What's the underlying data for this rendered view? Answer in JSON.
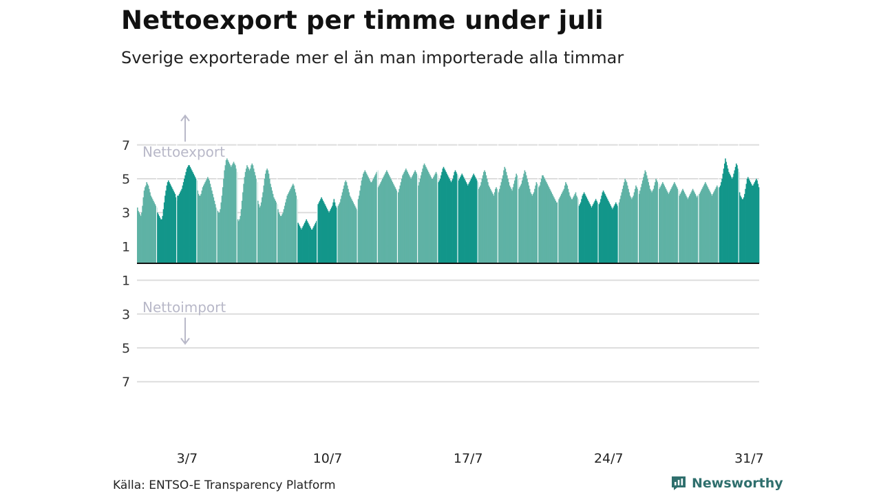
{
  "header": {
    "title": "Nettoexport per timme under juli",
    "subtitle": "Sverige exporterade mer el än man importerade alla timmar"
  },
  "footer": {
    "source": "Källa: ENTSO-E Transparency Platform",
    "brand": "Newsworthy",
    "brand_icon": "bar-chart-logo-icon",
    "brand_color": "#2f6f6d"
  },
  "chart_data": {
    "type": "bar",
    "x_tick_labels": [
      "3/7",
      "10/7",
      "17/7",
      "24/7",
      "31/7"
    ],
    "y_tick_labels": [
      "7",
      "5",
      "3",
      "1",
      "1",
      "3",
      "5",
      "7"
    ],
    "y_tick_values": [
      7,
      5,
      3,
      1,
      -1,
      -3,
      -5,
      -7
    ],
    "ylim": [
      -7,
      7
    ],
    "annotations": {
      "export": "Nettoexport",
      "import": "Nettoimport"
    },
    "colors": {
      "weekday": "#5fb2a5",
      "weekend": "#12968a",
      "annotation": "#b8b8c8",
      "grid": "#dddddd"
    },
    "grid": true,
    "weekend_days": [
      1,
      2,
      8,
      9,
      15,
      16,
      22,
      23,
      29,
      30
    ],
    "daily_values": [
      [
        3.3,
        3.1,
        3.0,
        2.9,
        2.8,
        3.0,
        3.4,
        3.9,
        4.3,
        4.5,
        4.6,
        4.8,
        4.7,
        4.6,
        4.4,
        4.2,
        4.0,
        3.9,
        3.8,
        3.7,
        3.6,
        3.5,
        3.4,
        3.3
      ],
      [
        3.0,
        2.9,
        2.8,
        2.7,
        2.6,
        2.6,
        2.8,
        3.2,
        3.6,
        4.0,
        4.3,
        4.6,
        4.8,
        4.9,
        4.8,
        4.7,
        4.6,
        4.5,
        4.4,
        4.3,
        4.2,
        4.1,
        3.9,
        3.7
      ],
      [
        4.0,
        4.0,
        4.1,
        4.2,
        4.3,
        4.4,
        4.6,
        4.8,
        5.0,
        5.2,
        5.4,
        5.6,
        5.7,
        5.8,
        5.8,
        5.7,
        5.6,
        5.5,
        5.4,
        5.3,
        5.2,
        5.1,
        5.0,
        4.9
      ],
      [
        4.3,
        4.1,
        4.0,
        4.0,
        4.1,
        4.3,
        4.5,
        4.6,
        4.7,
        4.8,
        4.9,
        5.0,
        5.1,
        5.0,
        4.9,
        4.7,
        4.5,
        4.3,
        4.1,
        3.9,
        3.7,
        3.5,
        3.3,
        3.2
      ],
      [
        3.1,
        3.0,
        3.0,
        3.2,
        3.6,
        4.0,
        4.5,
        5.0,
        5.5,
        5.8,
        6.1,
        6.2,
        6.1,
        6.0,
        5.9,
        5.8,
        5.7,
        5.8,
        5.9,
        6.0,
        5.9,
        5.8,
        5.6,
        5.4
      ],
      [
        2.6,
        2.5,
        2.6,
        2.8,
        3.2,
        3.7,
        4.2,
        4.7,
        5.1,
        5.4,
        5.6,
        5.8,
        5.7,
        5.6,
        5.5,
        5.6,
        5.8,
        5.9,
        5.8,
        5.6,
        5.4,
        5.2,
        5.0,
        4.8
      ],
      [
        3.7,
        3.5,
        3.3,
        3.4,
        3.6,
        3.9,
        4.2,
        4.6,
        5.0,
        5.3,
        5.5,
        5.6,
        5.5,
        5.3,
        5.0,
        4.7,
        4.5,
        4.3,
        4.1,
        3.9,
        3.8,
        3.7,
        3.6,
        3.5
      ],
      [
        3.2,
        3.0,
        2.9,
        2.8,
        2.8,
        2.9,
        3.0,
        3.2,
        3.4,
        3.6,
        3.8,
        4.0,
        4.1,
        4.2,
        4.3,
        4.4,
        4.5,
        4.6,
        4.7,
        4.6,
        4.4,
        4.2,
        4.0,
        3.8
      ],
      [
        2.4,
        2.3,
        2.2,
        2.1,
        2.0,
        2.1,
        2.2,
        2.3,
        2.4,
        2.5,
        2.6,
        2.5,
        2.4,
        2.3,
        2.2,
        2.1,
        2.0,
        2.0,
        2.1,
        2.2,
        2.3,
        2.4,
        2.5,
        2.6
      ],
      [
        3.5,
        3.6,
        3.7,
        3.8,
        3.9,
        3.8,
        3.7,
        3.6,
        3.5,
        3.4,
        3.3,
        3.2,
        3.1,
        3.0,
        3.1,
        3.2,
        3.3,
        3.4,
        3.6,
        3.8,
        3.6,
        3.4,
        3.3,
        3.2
      ],
      [
        3.4,
        3.5,
        3.6,
        3.8,
        4.0,
        4.2,
        4.4,
        4.6,
        4.8,
        4.9,
        4.8,
        4.6,
        4.4,
        4.2,
        4.0,
        3.9,
        3.8,
        3.7,
        3.6,
        3.5,
        3.4,
        3.3,
        3.2,
        3.1
      ],
      [
        3.8,
        4.0,
        4.3,
        4.6,
        4.9,
        5.1,
        5.3,
        5.4,
        5.5,
        5.4,
        5.3,
        5.2,
        5.1,
        5.0,
        4.9,
        4.8,
        4.8,
        4.9,
        5.0,
        5.1,
        5.2,
        5.3,
        5.4,
        5.5
      ],
      [
        4.5,
        4.6,
        4.7,
        4.8,
        4.9,
        5.0,
        5.1,
        5.2,
        5.3,
        5.4,
        5.5,
        5.4,
        5.3,
        5.2,
        5.1,
        5.0,
        4.9,
        4.8,
        4.7,
        4.6,
        4.5,
        4.4,
        4.3,
        4.2
      ],
      [
        4.2,
        4.4,
        4.6,
        4.8,
        5.0,
        5.2,
        5.3,
        5.4,
        5.5,
        5.6,
        5.5,
        5.4,
        5.3,
        5.2,
        5.1,
        5.0,
        5.1,
        5.2,
        5.3,
        5.4,
        5.5,
        5.4,
        5.3,
        5.2
      ],
      [
        4.6,
        4.8,
        5.0,
        5.2,
        5.4,
        5.6,
        5.8,
        5.9,
        5.8,
        5.7,
        5.6,
        5.5,
        5.4,
        5.3,
        5.2,
        5.1,
        5.0,
        5.0,
        5.1,
        5.2,
        5.3,
        5.4,
        5.3,
        5.2
      ],
      [
        4.8,
        4.9,
        5.0,
        5.2,
        5.4,
        5.6,
        5.7,
        5.6,
        5.5,
        5.4,
        5.3,
        5.2,
        5.1,
        5.0,
        4.9,
        4.8,
        4.9,
        5.0,
        5.2,
        5.4,
        5.5,
        5.4,
        5.3,
        5.2
      ],
      [
        4.9,
        5.0,
        5.1,
        5.2,
        5.3,
        5.2,
        5.1,
        5.0,
        4.9,
        4.8,
        4.7,
        4.6,
        4.7,
        4.8,
        4.9,
        5.0,
        5.1,
        5.2,
        5.3,
        5.2,
        5.1,
        5.0,
        4.9,
        4.8
      ],
      [
        4.4,
        4.5,
        4.6,
        4.8,
        5.0,
        5.2,
        5.4,
        5.5,
        5.4,
        5.2,
        5.0,
        4.8,
        4.6,
        4.5,
        4.4,
        4.3,
        4.2,
        4.1,
        4.0,
        4.2,
        4.4,
        4.5,
        4.4,
        4.3
      ],
      [
        4.2,
        4.4,
        4.6,
        4.8,
        5.0,
        5.2,
        5.5,
        5.7,
        5.6,
        5.4,
        5.2,
        5.0,
        4.8,
        4.6,
        4.5,
        4.4,
        4.3,
        4.5,
        4.7,
        4.9,
        5.1,
        5.3,
        5.2,
        5.0
      ],
      [
        4.4,
        4.5,
        4.6,
        4.7,
        4.9,
        5.1,
        5.3,
        5.5,
        5.4,
        5.2,
        5.0,
        4.8,
        4.6,
        4.4,
        4.2,
        4.1,
        4.0,
        4.1,
        4.2,
        4.4,
        4.6,
        4.8,
        4.7,
        4.6
      ],
      [
        4.5,
        4.6,
        4.8,
        5.0,
        5.2,
        5.2,
        5.1,
        5.0,
        4.9,
        4.8,
        4.7,
        4.6,
        4.5,
        4.4,
        4.3,
        4.2,
        4.1,
        4.0,
        3.9,
        3.8,
        3.7,
        3.6,
        3.6,
        3.7
      ],
      [
        3.8,
        3.9,
        4.0,
        4.1,
        4.2,
        4.3,
        4.4,
        4.6,
        4.8,
        4.7,
        4.6,
        4.4,
        4.2,
        4.0,
        3.9,
        3.8,
        3.8,
        3.9,
        4.0,
        4.1,
        4.2,
        4.0,
        3.9,
        3.8
      ],
      [
        3.4,
        3.5,
        3.6,
        3.8,
        4.0,
        4.1,
        4.2,
        4.1,
        4.0,
        3.9,
        3.8,
        3.7,
        3.6,
        3.5,
        3.4,
        3.3,
        3.4,
        3.5,
        3.6,
        3.7,
        3.8,
        3.7,
        3.6,
        3.5
      ],
      [
        3.5,
        3.6,
        3.8,
        4.0,
        4.2,
        4.3,
        4.2,
        4.1,
        4.0,
        3.9,
        3.8,
        3.7,
        3.6,
        3.5,
        3.4,
        3.3,
        3.2,
        3.3,
        3.4,
        3.5,
        3.6,
        3.5,
        3.4,
        3.3
      ],
      [
        3.6,
        3.8,
        4.0,
        4.2,
        4.4,
        4.6,
        4.8,
        5.0,
        4.9,
        4.8,
        4.6,
        4.4,
        4.2,
        4.0,
        3.9,
        3.8,
        3.9,
        4.0,
        4.2,
        4.4,
        4.6,
        4.5,
        4.4,
        4.3
      ],
      [
        4.1,
        4.3,
        4.5,
        4.7,
        4.9,
        5.1,
        5.3,
        5.5,
        5.4,
        5.2,
        5.0,
        4.8,
        4.6,
        4.4,
        4.3,
        4.2,
        4.3,
        4.4,
        4.6,
        4.8,
        5.0,
        4.9,
        4.8,
        4.7
      ],
      [
        4.4,
        4.5,
        4.6,
        4.7,
        4.8,
        4.7,
        4.6,
        4.5,
        4.4,
        4.3,
        4.2,
        4.1,
        4.2,
        4.3,
        4.4,
        4.5,
        4.6,
        4.7,
        4.8,
        4.7,
        4.6,
        4.5,
        4.4,
        4.3
      ],
      [
        4.0,
        4.1,
        4.2,
        4.3,
        4.4,
        4.3,
        4.2,
        4.1,
        4.0,
        3.9,
        3.8,
        3.9,
        4.0,
        4.1,
        4.2,
        4.3,
        4.4,
        4.3,
        4.2,
        4.1,
        4.0,
        3.9,
        4.0,
        4.1
      ],
      [
        4.1,
        4.2,
        4.3,
        4.4,
        4.5,
        4.6,
        4.7,
        4.8,
        4.7,
        4.6,
        4.5,
        4.4,
        4.3,
        4.2,
        4.1,
        4.0,
        4.1,
        4.2,
        4.3,
        4.4,
        4.5,
        4.6,
        4.5,
        4.4
      ],
      [
        4.5,
        4.6,
        4.8,
        5.0,
        5.3,
        5.6,
        5.9,
        6.2,
        6.0,
        5.8,
        5.6,
        5.4,
        5.3,
        5.2,
        5.1,
        5.0,
        5.1,
        5.3,
        5.5,
        5.7,
        5.9,
        5.8,
        5.6,
        5.4
      ],
      [
        4.2,
        4.0,
        3.9,
        3.8,
        3.8,
        3.9,
        4.1,
        4.4,
        4.7,
        5.0,
        5.1,
        5.0,
        4.9,
        4.8,
        4.7,
        4.6,
        4.6,
        4.7,
        4.8,
        4.9,
        5.0,
        4.9,
        4.7,
        4.5
      ]
    ]
  }
}
